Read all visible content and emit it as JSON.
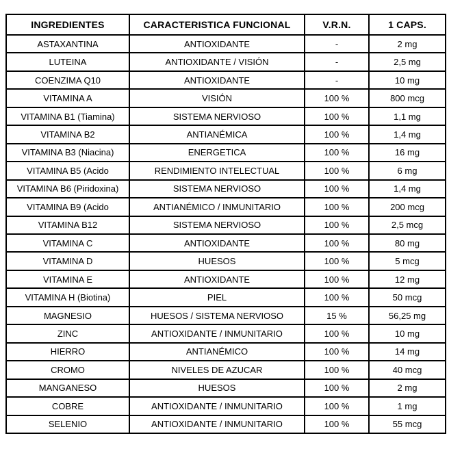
{
  "page": {
    "background_color": "#ffffff",
    "border_color": "#000000",
    "text_color": "#000000"
  },
  "chart_data": {
    "type": "table",
    "title": "",
    "columns": [
      "INGREDIENTES",
      "CARACTERISTICA FUNCIONAL",
      "V.R.N.",
      "1 CAPS."
    ],
    "rows": [
      [
        "ASTAXANTINA",
        "ANTIOXIDANTE",
        "-",
        "2 mg"
      ],
      [
        "LUTEINA",
        "ANTIOXIDANTE / VISIÓN",
        "-",
        "2,5 mg"
      ],
      [
        "COENZIMA Q10",
        "ANTIOXIDANTE",
        "-",
        "10 mg"
      ],
      [
        "VITAMINA A",
        "VISIÓN",
        "100 %",
        "800 mcg"
      ],
      [
        "VITAMINA B1 (Tiamina)",
        "SISTEMA NERVIOSO",
        "100 %",
        "1,1 mg"
      ],
      [
        "VITAMINA B2",
        "ANTIANÉMICA",
        "100 %",
        "1,4 mg"
      ],
      [
        "VITAMINA B3 (Niacina)",
        "ENERGETICA",
        "100 %",
        "16 mg"
      ],
      [
        "VITAMINA B5 (Acido",
        "RENDIMIENTO INTELECTUAL",
        "100 %",
        "6 mg"
      ],
      [
        "VITAMINA B6 (Piridoxina)",
        "SISTEMA NERVIOSO",
        "100 %",
        "1,4 mg"
      ],
      [
        "VITAMINA B9 (Acido",
        "ANTIANÉMICO / INMUNITARIO",
        "100 %",
        "200 mcg"
      ],
      [
        "VITAMINA B12",
        "SISTEMA NERVIOSO",
        "100 %",
        "2,5 mcg"
      ],
      [
        "VITAMINA C",
        "ANTIOXIDANTE",
        "100 %",
        "80 mg"
      ],
      [
        "VITAMINA D",
        "HUESOS",
        "100 %",
        "5 mcg"
      ],
      [
        "VITAMINA E",
        "ANTIOXIDANTE",
        "100 %",
        "12 mg"
      ],
      [
        "VITAMINA H (Biotina)",
        "PIEL",
        "100 %",
        "50 mcg"
      ],
      [
        "MAGNESIO",
        "HUESOS / SISTEMA NERVIOSO",
        "15 %",
        "56,25 mg"
      ],
      [
        "ZINC",
        "ANTIOXIDANTE / INMUNITARIO",
        "100 %",
        "10 mg"
      ],
      [
        "HIERRO",
        "ANTIANÉMICO",
        "100 %",
        "14 mg"
      ],
      [
        "CROMO",
        "NIVELES DE AZUCAR",
        "100 %",
        "40 mcg"
      ],
      [
        "MANGANESO",
        "HUESOS",
        "100 %",
        "2 mg"
      ],
      [
        "COBRE",
        "ANTIOXIDANTE / INMUNITARIO",
        "100 %",
        "1 mg"
      ],
      [
        "SELENIO",
        "ANTIOXIDANTE / INMUNITARIO",
        "100 %",
        "55 mcg"
      ]
    ],
    "layout_hints": {
      "grid": "on",
      "small_caracteristica_row_indexes": [
        0,
        1,
        11,
        13
      ]
    }
  }
}
